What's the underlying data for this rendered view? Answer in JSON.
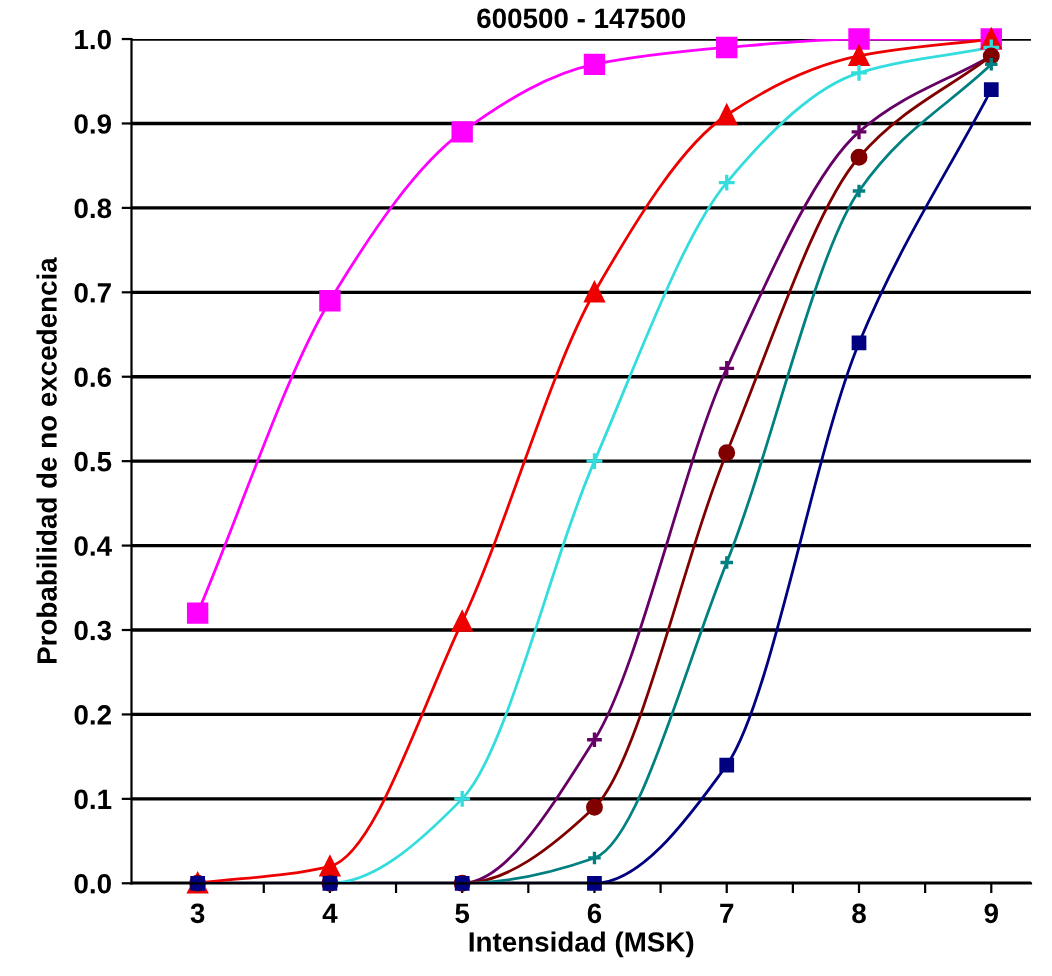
{
  "chart_data": {
    "type": "line",
    "title": "600500 - 147500",
    "xlabel": "Intensidad (MSK)",
    "ylabel": "Probabilidad de no excedencia",
    "x": [
      3,
      4,
      5,
      6,
      7,
      8,
      9
    ],
    "series": [
      {
        "color": "#ff00ff",
        "marker": "square",
        "values": [
          0.32,
          0.69,
          0.89,
          0.97,
          0.99,
          1.0,
          1.0
        ]
      },
      {
        "color": "#ee0000",
        "marker": "triangle",
        "values": [
          0.0,
          0.02,
          0.31,
          0.7,
          0.91,
          0.98,
          1.0
        ]
      },
      {
        "color": "#33dddd",
        "marker": "cross",
        "values": [
          0.0,
          0.0,
          0.1,
          0.5,
          0.83,
          0.96,
          0.99
        ]
      },
      {
        "color": "#660066",
        "marker": "cross",
        "values": [
          0.0,
          0.0,
          0.0,
          0.17,
          0.61,
          0.89,
          0.98
        ]
      },
      {
        "color": "#800000",
        "marker": "circle",
        "values": [
          0.0,
          0.0,
          0.0,
          0.09,
          0.51,
          0.86,
          0.98
        ]
      },
      {
        "color": "#008080",
        "marker": "cross",
        "values": [
          0.0,
          0.0,
          0.0,
          0.03,
          0.38,
          0.82,
          0.97
        ]
      },
      {
        "color": "#000080",
        "marker": "square",
        "values": [
          0.0,
          0.0,
          0.0,
          0.0,
          0.14,
          0.64,
          0.94
        ]
      }
    ],
    "xlim": [
      2.5,
      9.3
    ],
    "ylim": [
      0.0,
      1.0
    ],
    "xticks": [
      3,
      {
        "value": 3.5,
        "label": null
      },
      4,
      {
        "value": 4.5,
        "label": null
      },
      5,
      {
        "value": 5.5,
        "label": null
      },
      6,
      {
        "value": 6.5,
        "label": null
      },
      7,
      {
        "value": 7.5,
        "label": null
      },
      8,
      {
        "value": 8.5,
        "label": null
      },
      9
    ],
    "yticks": [
      {
        "value": 0.0,
        "label": "0.0"
      },
      0.1,
      0.2,
      0.3,
      0.4,
      0.5,
      0.6,
      0.7,
      0.8,
      0.9,
      {
        "value": 1.0,
        "label": "1.0"
      }
    ],
    "grid": "y",
    "line_style": "solid"
  }
}
